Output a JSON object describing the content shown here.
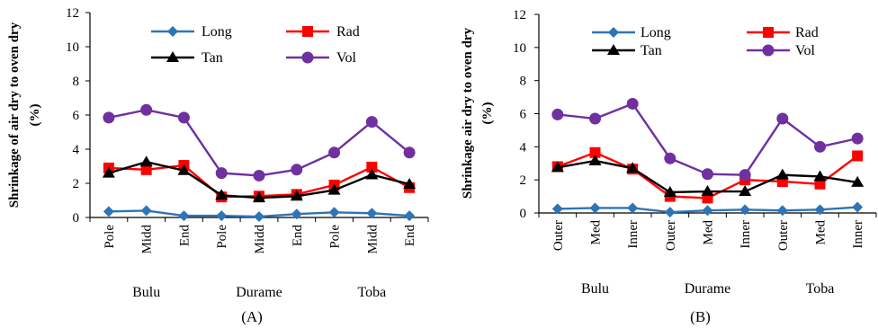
{
  "colors": {
    "Long": "#2e75b6",
    "Rad": "#ff0000",
    "Tan": "#000000",
    "Vol": "#7030a0"
  },
  "chart_data": [
    {
      "type": "line",
      "panel_label": "(A)",
      "ylabel": [
        "Shrinkage of air dry to oven dry",
        "(%)"
      ],
      "ylim": [
        0,
        12
      ],
      "yticks": [
        "0",
        "2",
        "4",
        "6",
        "8",
        "10",
        "12"
      ],
      "categories": [
        "Pole",
        "Midd",
        "End",
        "Pole",
        "Midd",
        "End",
        "Pole",
        "Midd",
        "End"
      ],
      "groups": [
        "Bulu",
        "Durame",
        "Toba"
      ],
      "legend_position": "top",
      "series": [
        {
          "name": "Long",
          "marker": "diamond",
          "values": [
            0.35,
            0.4,
            0.1,
            0.1,
            0.05,
            0.2,
            0.3,
            0.25,
            0.1
          ]
        },
        {
          "name": "Rad",
          "marker": "square",
          "values": [
            2.9,
            2.8,
            3.05,
            1.2,
            1.25,
            1.35,
            1.9,
            2.95,
            1.75
          ]
        },
        {
          "name": "Tan",
          "marker": "triangle",
          "values": [
            2.6,
            3.25,
            2.75,
            1.3,
            1.15,
            1.25,
            1.6,
            2.5,
            1.95
          ]
        },
        {
          "name": "Vol",
          "marker": "circle",
          "values": [
            5.85,
            6.3,
            5.85,
            2.6,
            2.45,
            2.8,
            3.8,
            5.6,
            3.8
          ]
        }
      ]
    },
    {
      "type": "line",
      "panel_label": "(B)",
      "ylabel": [
        "Shrinkage air dry to oven dry",
        "(%)"
      ],
      "ylim": [
        0,
        12
      ],
      "yticks": [
        "0",
        "2",
        "4",
        "6",
        "8",
        "10",
        "12"
      ],
      "categories": [
        "Outer",
        "Med",
        "Inner",
        "Outer",
        "Med",
        "Inner",
        "Outer",
        "Med",
        "Inner"
      ],
      "groups": [
        "Bulu",
        "Durame",
        "Toba"
      ],
      "legend_position": "top",
      "series": [
        {
          "name": "Long",
          "marker": "diamond",
          "values": [
            0.25,
            0.3,
            0.3,
            0.05,
            0.15,
            0.2,
            0.15,
            0.2,
            0.35
          ]
        },
        {
          "name": "Rad",
          "marker": "square",
          "values": [
            2.8,
            3.65,
            2.65,
            1.0,
            0.9,
            2.0,
            1.9,
            1.75,
            3.45
          ]
        },
        {
          "name": "Tan",
          "marker": "triangle",
          "values": [
            2.75,
            3.15,
            2.7,
            1.25,
            1.3,
            1.3,
            2.3,
            2.2,
            1.85
          ]
        },
        {
          "name": "Vol",
          "marker": "circle",
          "values": [
            5.95,
            5.7,
            6.6,
            3.3,
            2.35,
            2.3,
            5.7,
            4.0,
            4.5
          ]
        }
      ]
    }
  ]
}
